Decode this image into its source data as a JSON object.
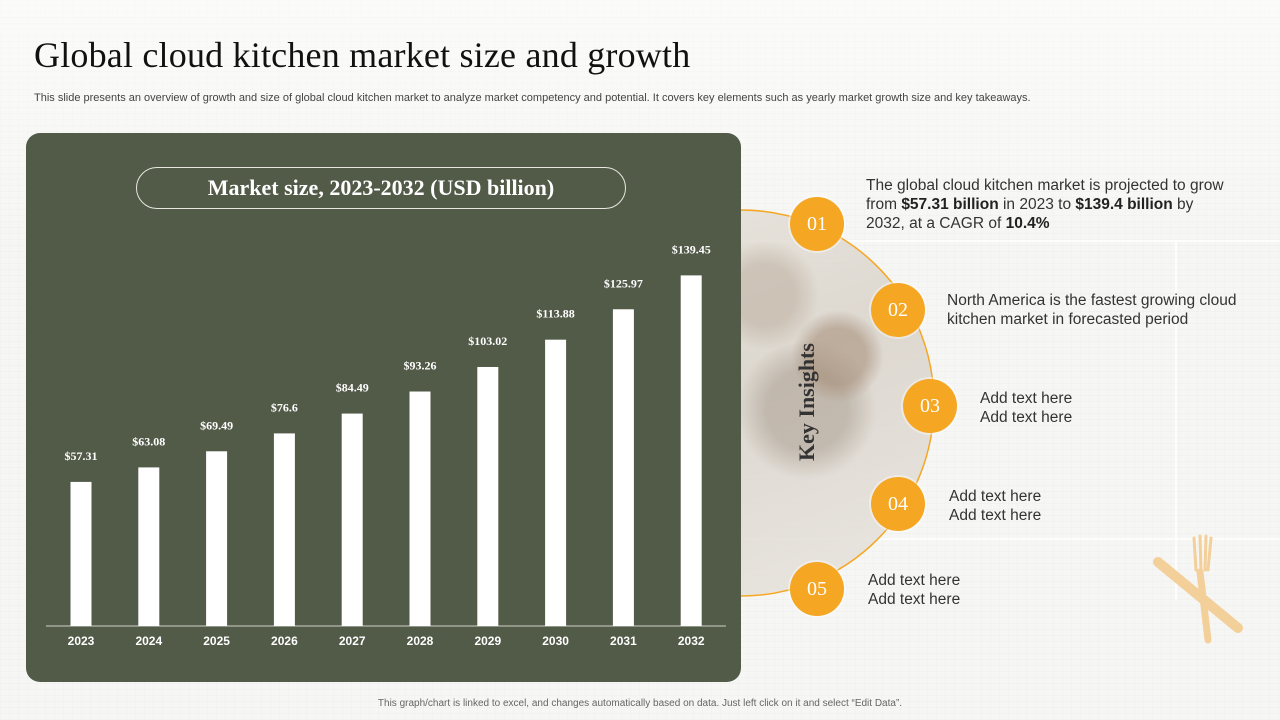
{
  "slide": {
    "title": "Global cloud kitchen market size and growth",
    "subtitle": "This slide presents an overview of growth and size of global cloud kitchen market to analyze market competency and potential. It covers key elements such as yearly market growth size and key takeaways.",
    "footnote": "This graph/chart is linked to excel, and changes automatically based on data. Just left click on it and select “Edit Data”."
  },
  "chart_data": {
    "type": "bar",
    "title": "Market size, 2023-2032 (USD billion)",
    "categories": [
      "2023",
      "2024",
      "2025",
      "2026",
      "2027",
      "2028",
      "2029",
      "2030",
      "2031",
      "2032"
    ],
    "values": [
      57.31,
      63.08,
      69.49,
      76.6,
      84.49,
      93.26,
      103.02,
      113.88,
      125.97,
      139.45
    ],
    "data_labels": [
      "$57.31",
      "$63.08",
      "$69.49",
      "$76.6",
      "$84.49",
      "$93.26",
      "$103.02",
      "$113.88",
      "$125.97",
      "$139.45"
    ],
    "xlabel": "",
    "ylabel": "",
    "ylim": [
      0,
      140
    ],
    "grid": false,
    "colors": {
      "panel": "#525a48",
      "bar": "#ffffff",
      "label": "#ffffff"
    }
  },
  "insights": {
    "heading": "Key Insights",
    "accent_color": "#f5a623",
    "items": [
      {
        "number": "01",
        "parts": [
          {
            "text": "The global cloud kitchen market is projected to grow from ",
            "bold": false
          },
          {
            "text": "$57.31 billion",
            "bold": true
          },
          {
            "text": " in 2023 to ",
            "bold": false
          },
          {
            "text": "$139.4 billion",
            "bold": true
          },
          {
            "text": " by 2032, at a CAGR of ",
            "bold": false
          },
          {
            "text": "10.4%",
            "bold": true
          }
        ]
      },
      {
        "number": "02",
        "line1": "North America is the fastest growing cloud",
        "line2": "kitchen market in forecasted period"
      },
      {
        "number": "03",
        "line1": "Add text here",
        "line2": "Add text here"
      },
      {
        "number": "04",
        "line1": "Add text here",
        "line2": "Add text here"
      },
      {
        "number": "05",
        "line1": "Add text here",
        "line2": "Add text here"
      }
    ]
  }
}
